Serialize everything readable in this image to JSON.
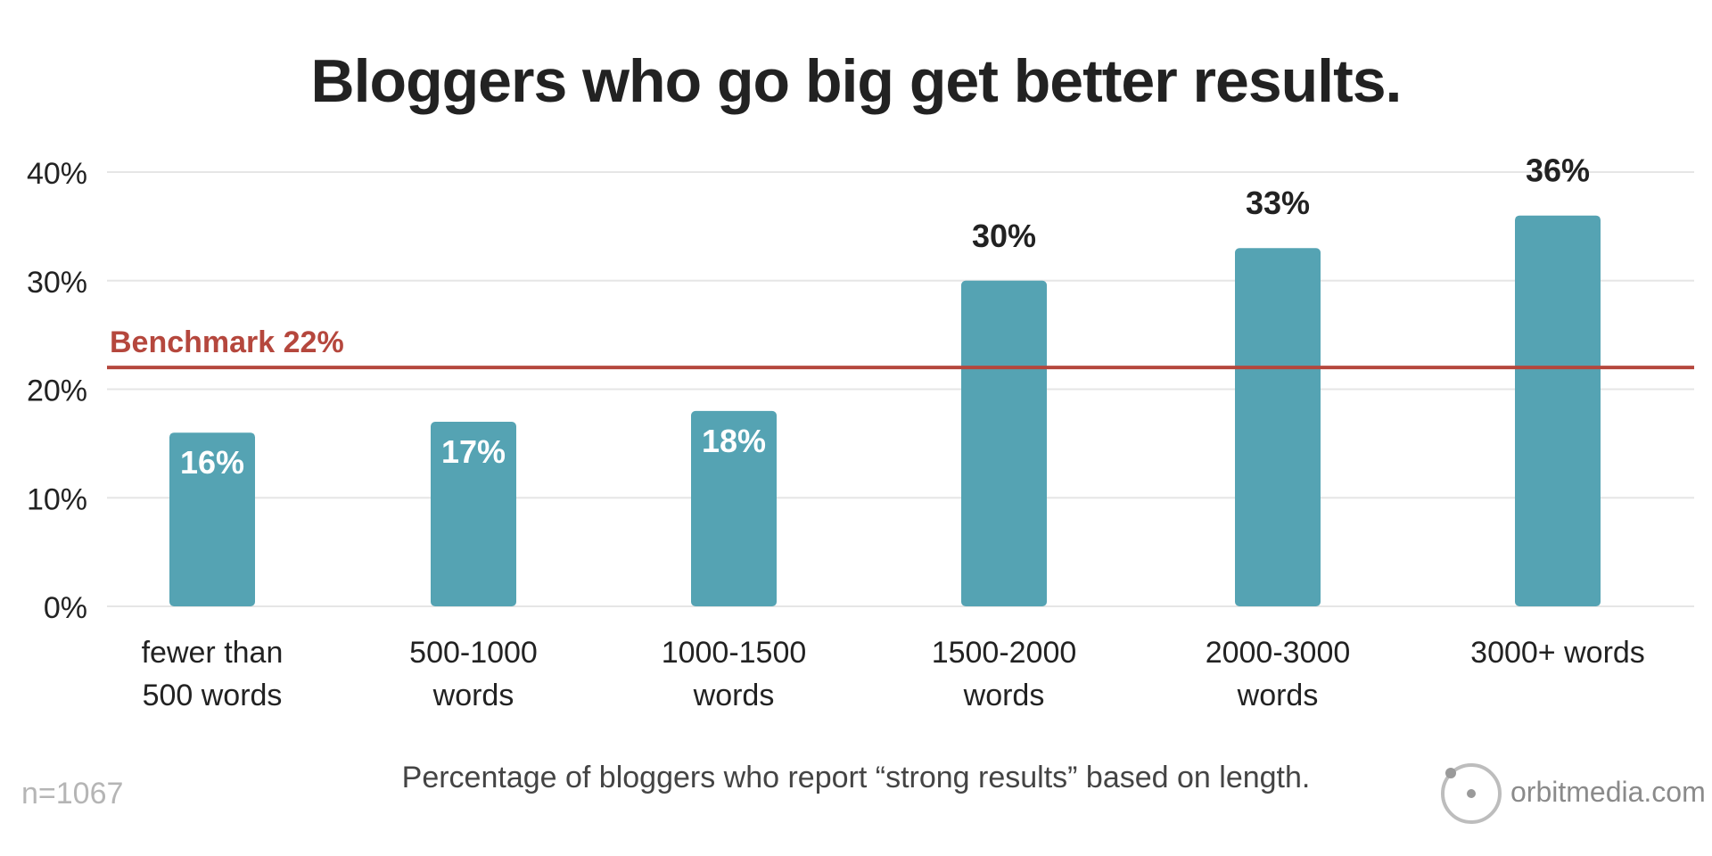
{
  "chart_data": {
    "type": "bar",
    "title": "Bloggers who go big get better results.",
    "caption": "Percentage of bloggers who report “strong results” based on length.",
    "sample_size": "n=1067",
    "categories": [
      [
        "fewer than",
        "500 words"
      ],
      [
        "500-1000",
        "words"
      ],
      [
        "1000-1500",
        "words"
      ],
      [
        "1500-2000",
        "words"
      ],
      [
        "2000-3000",
        "words"
      ],
      [
        "3000+ words"
      ]
    ],
    "values": [
      16,
      17,
      18,
      30,
      33,
      36
    ],
    "value_labels": [
      "16%",
      "17%",
      "18%",
      "30%",
      "33%",
      "36%"
    ],
    "y_ticks": [
      0,
      10,
      20,
      30,
      40
    ],
    "y_tick_labels": [
      "0%",
      "10%",
      "20%",
      "30%",
      "40%"
    ],
    "ylim": [
      0,
      40
    ],
    "grid": true,
    "benchmark": {
      "value": 22,
      "label": "Benchmark 22%"
    },
    "colors": {
      "bar": "#55a3b3",
      "benchmark": "#b5473d",
      "grid": "#e6e6e6",
      "text": "#222222"
    }
  },
  "branding": {
    "logo_text": "orbitmedia.com"
  }
}
